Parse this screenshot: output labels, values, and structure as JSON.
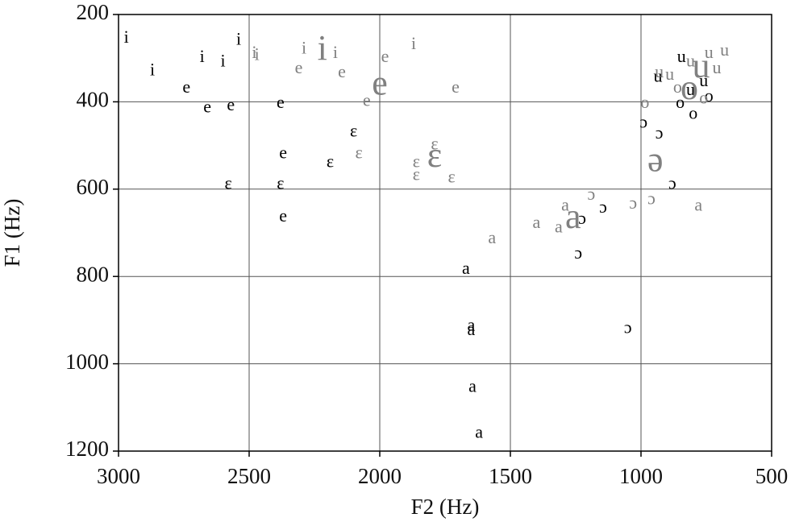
{
  "chart_data": {
    "type": "scatter",
    "x_label": "F2 (Hz)",
    "y_label": "F1 (Hz)",
    "xlim": [
      3000,
      500
    ],
    "ylim": [
      1200,
      200
    ],
    "xticks": [
      3000,
      2500,
      2000,
      1500,
      1000,
      500
    ],
    "yticks": [
      200,
      400,
      600,
      800,
      1000,
      1200
    ],
    "grid": true,
    "series": [
      {
        "color": "#000000",
        "size": 22,
        "labels": [
          "i",
          "i",
          "i",
          "i",
          "i",
          "e",
          "e",
          "e",
          "e",
          "e",
          "e",
          "ɛ",
          "ɛ",
          "ɛ",
          "ɛ",
          "a",
          "a",
          "a",
          "a",
          "a",
          "ɔ",
          "ɔ",
          "ɔ",
          "ɔ",
          "ɔ",
          "ɔ",
          "ɔ",
          "o",
          "o",
          "o",
          "u",
          "u",
          "u",
          "u"
        ],
        "x": [
          2970,
          2870,
          2680,
          2600,
          2540,
          2740,
          2660,
          2570,
          2380,
          2370,
          2370,
          2580,
          2380,
          2100,
          2190,
          1670,
          1650,
          1650,
          1645,
          1620,
          1240,
          1225,
          1145,
          1050,
          990,
          930,
          880,
          850,
          800,
          740,
          845,
          935,
          760,
          810
        ],
        "y": [
          255,
          330,
          300,
          310,
          260,
          370,
          415,
          410,
          405,
          520,
          665,
          590,
          590,
          470,
          540,
          785,
          915,
          925,
          1055,
          1160,
          750,
          670,
          645,
          920,
          450,
          475,
          590,
          405,
          430,
          390,
          300,
          345,
          355,
          375
        ]
      },
      {
        "color": "#808080",
        "size": 22,
        "labels": [
          "i",
          "i",
          "i",
          "i",
          "i",
          "e",
          "e",
          "e",
          "e",
          "e",
          "ɛ",
          "ɛ",
          "ɛ",
          "ɛ",
          "ɛ",
          "a",
          "a",
          "a",
          "a",
          "a",
          "ɔ",
          "ɔ",
          "ɔ",
          "o",
          "o",
          "o",
          "u",
          "u",
          "u",
          "u",
          "u",
          "u"
        ],
        "x": [
          2480,
          2470,
          2290,
          2170,
          1870,
          2310,
          2145,
          2050,
          1980,
          1710,
          2080,
          1860,
          1860,
          1790,
          1725,
          1570,
          1400,
          1315,
          1290,
          780,
          1190,
          1030,
          960,
          985,
          860,
          760,
          930,
          890,
          810,
          740,
          680,
          710
        ],
        "y": [
          290,
          295,
          280,
          290,
          270,
          325,
          335,
          400,
          300,
          370,
          520,
          540,
          570,
          500,
          575,
          715,
          680,
          690,
          640,
          640,
          615,
          635,
          625,
          405,
          370,
          395,
          335,
          340,
          310,
          290,
          285,
          325
        ]
      },
      {
        "color": "#808080",
        "size": 44,
        "labels": [
          "i",
          "e",
          "ɛ",
          "a",
          "ə",
          "o",
          "u"
        ],
        "x": [
          2220,
          2000,
          1790,
          1260,
          945,
          815,
          770
        ],
        "y": [
          285,
          365,
          530,
          670,
          540,
          375,
          325
        ]
      }
    ]
  }
}
